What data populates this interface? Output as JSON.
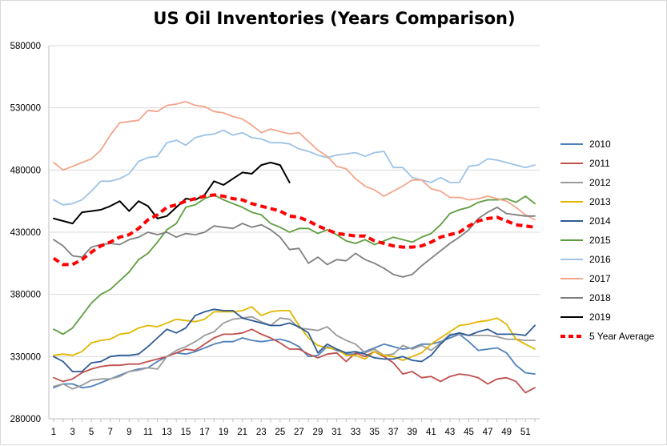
{
  "chart_data": {
    "type": "line",
    "title": "US Oil Inventories (Years Comparison)",
    "xlabel": "",
    "ylabel": "",
    "x_ticks": [
      1,
      3,
      5,
      7,
      9,
      11,
      13,
      15,
      17,
      19,
      21,
      23,
      25,
      27,
      29,
      31,
      33,
      35,
      37,
      39,
      41,
      43,
      45,
      47,
      49,
      51
    ],
    "ylim": [
      280000,
      580000
    ],
    "y_ticks": [
      280000,
      330000,
      380000,
      430000,
      480000,
      530000,
      580000
    ],
    "grid": "horizontal",
    "legend_position": "right",
    "series": [
      {
        "name": "2010",
        "color": "#4f81bd",
        "dash": "solid",
        "values": [
          305000,
          308000,
          308000,
          305000,
          306000,
          309000,
          312000,
          315000,
          318000,
          320000,
          321000,
          326000,
          330000,
          333000,
          332000,
          334000,
          337000,
          340000,
          342000,
          342000,
          345000,
          343000,
          342000,
          343000,
          344000,
          342000,
          338000,
          330000,
          331000,
          338000,
          335000,
          332000,
          332000,
          334000,
          337000,
          340000,
          338000,
          336000,
          337000,
          340000,
          340000,
          342000,
          345000,
          348000,
          342000,
          335000,
          336000,
          337000,
          333000,
          323000,
          317000,
          316000
        ]
      },
      {
        "name": "2011",
        "color": "#c0504d",
        "dash": "solid",
        "values": [
          313000,
          310000,
          312000,
          317000,
          320000,
          322000,
          323000,
          323000,
          324000,
          324000,
          326000,
          328000,
          330000,
          333000,
          336000,
          335000,
          340000,
          345000,
          348000,
          348000,
          349000,
          352000,
          348000,
          345000,
          341000,
          336000,
          336000,
          332000,
          329000,
          332000,
          333000,
          326000,
          333000,
          330000,
          334000,
          330000,
          325000,
          316000,
          318000,
          313000,
          314000,
          310000,
          314000,
          316000,
          315000,
          313000,
          308000,
          312000,
          313000,
          310000,
          301000,
          305000
        ]
      },
      {
        "name": "2012",
        "color": "#9b9b9b",
        "dash": "solid",
        "values": [
          306000,
          308000,
          304000,
          307000,
          311000,
          312000,
          312000,
          314000,
          318000,
          319000,
          321000,
          320000,
          330000,
          335000,
          338000,
          342000,
          347000,
          350000,
          357000,
          360000,
          361000,
          362000,
          358000,
          355000,
          361000,
          360000,
          353000,
          352000,
          351000,
          354000,
          347000,
          343000,
          340000,
          333000,
          336000,
          331000,
          332000,
          339000,
          336000,
          339000,
          335000,
          341000,
          348000,
          348000,
          347000,
          347000,
          347000,
          346000,
          344000,
          344000,
          343000,
          343000
        ]
      },
      {
        "name": "2013",
        "color": "#e2b700",
        "dash": "solid",
        "values": [
          331000,
          332000,
          331000,
          334000,
          341000,
          343000,
          344000,
          348000,
          349000,
          353000,
          355000,
          354000,
          357000,
          360000,
          359000,
          358000,
          360000,
          366000,
          366000,
          366000,
          367000,
          370000,
          363000,
          366000,
          367000,
          367000,
          355000,
          345000,
          339000,
          337000,
          336000,
          331000,
          331000,
          328000,
          334000,
          331000,
          330000,
          327000,
          330000,
          333000,
          340000,
          345000,
          350000,
          355000,
          356000,
          358000,
          359000,
          361000,
          356000,
          344000,
          340000,
          336000
        ]
      },
      {
        "name": "2014",
        "color": "#2e5b97",
        "dash": "solid",
        "values": [
          330000,
          326000,
          318000,
          318000,
          325000,
          326000,
          330000,
          331000,
          331000,
          332000,
          338000,
          345000,
          352000,
          349000,
          353000,
          363000,
          366000,
          368000,
          367000,
          367000,
          361000,
          359000,
          357000,
          355000,
          355000,
          357000,
          354000,
          349000,
          333000,
          340000,
          336000,
          333000,
          334000,
          332000,
          329000,
          328000,
          328000,
          330000,
          327000,
          326000,
          331000,
          340000,
          347000,
          349000,
          347000,
          350000,
          352000,
          348000,
          348000,
          348000,
          347000,
          355000
        ]
      },
      {
        "name": "2015",
        "color": "#5e9e3f",
        "dash": "solid",
        "values": [
          352000,
          348000,
          353000,
          363000,
          373000,
          380000,
          384000,
          391000,
          398000,
          408000,
          413000,
          422000,
          432000,
          437000,
          450000,
          452000,
          457000,
          460000,
          456000,
          453000,
          450000,
          446000,
          444000,
          437000,
          434000,
          430000,
          433000,
          433000,
          429000,
          432000,
          428000,
          423000,
          421000,
          424000,
          420000,
          423000,
          426000,
          424000,
          422000,
          426000,
          429000,
          436000,
          445000,
          448000,
          450000,
          454000,
          456000,
          456000,
          457000,
          454000,
          459000,
          453000
        ]
      },
      {
        "name": "2016",
        "color": "#9dc3e6",
        "dash": "solid",
        "values": [
          456000,
          452000,
          453000,
          456000,
          463000,
          471000,
          471000,
          473000,
          477000,
          487000,
          490000,
          491000,
          502000,
          504000,
          500000,
          506000,
          508000,
          509000,
          512000,
          508000,
          510000,
          506000,
          505000,
          502000,
          502000,
          501000,
          497000,
          495000,
          492000,
          490000,
          492000,
          493000,
          494000,
          491000,
          494000,
          495000,
          482000,
          482000,
          474000,
          472000,
          470000,
          474000,
          470000,
          470000,
          483000,
          484000,
          489000,
          488000,
          486000,
          484000,
          482000,
          484000
        ]
      },
      {
        "name": "2017",
        "color": "#f4a58a",
        "dash": "solid",
        "values": [
          486000,
          480000,
          483000,
          486000,
          489000,
          496000,
          508000,
          518000,
          519000,
          520000,
          528000,
          527000,
          532000,
          533000,
          535000,
          532000,
          531000,
          527000,
          526000,
          523000,
          521000,
          516000,
          510000,
          513000,
          511000,
          509000,
          510000,
          503000,
          496000,
          491000,
          483000,
          481000,
          473000,
          467000,
          464000,
          459000,
          463000,
          467000,
          472000,
          472000,
          465000,
          463000,
          458000,
          458000,
          456000,
          457000,
          459000,
          457000,
          455000,
          450000,
          444000,
          440000
        ]
      },
      {
        "name": "2018",
        "color": "#7f7f7f",
        "dash": "solid",
        "values": [
          424000,
          419000,
          411000,
          410000,
          418000,
          420000,
          421000,
          420000,
          424000,
          426000,
          430000,
          428000,
          430000,
          426000,
          429000,
          428000,
          430000,
          435000,
          434000,
          433000,
          437000,
          434000,
          436000,
          432000,
          426000,
          416000,
          417000,
          405000,
          410000,
          404000,
          408000,
          407000,
          413000,
          408000,
          405000,
          401000,
          396000,
          394000,
          396000,
          403000,
          409000,
          415000,
          421000,
          426000,
          432000,
          441000,
          446000,
          450000,
          445000,
          444000,
          443000,
          443000
        ]
      },
      {
        "name": "2019",
        "color": "#000000",
        "dash": "solid",
        "values": [
          441000,
          439000,
          437000,
          446000,
          447000,
          448000,
          451000,
          455000,
          447000,
          455000,
          451000,
          441000,
          443000,
          450000,
          457000,
          456000,
          460000,
          471000,
          468000,
          473000,
          478000,
          477000,
          484000,
          486000,
          484000,
          470000
        ]
      },
      {
        "name": "5 Year Average",
        "color": "#ff0000",
        "dash": "dashed",
        "values": [
          409000,
          404000,
          404000,
          408000,
          414000,
          419000,
          422000,
          426000,
          428000,
          433000,
          440000,
          444000,
          450000,
          452000,
          455000,
          457000,
          459000,
          460000,
          459000,
          457000,
          456000,
          453000,
          451000,
          449000,
          447000,
          443000,
          442000,
          439000,
          435000,
          432000,
          429000,
          428000,
          427000,
          427000,
          423000,
          421000,
          419000,
          418000,
          418000,
          419000,
          422000,
          426000,
          428000,
          430000,
          435000,
          439000,
          441000,
          442000,
          439000,
          436000,
          435000,
          434000
        ]
      }
    ]
  }
}
